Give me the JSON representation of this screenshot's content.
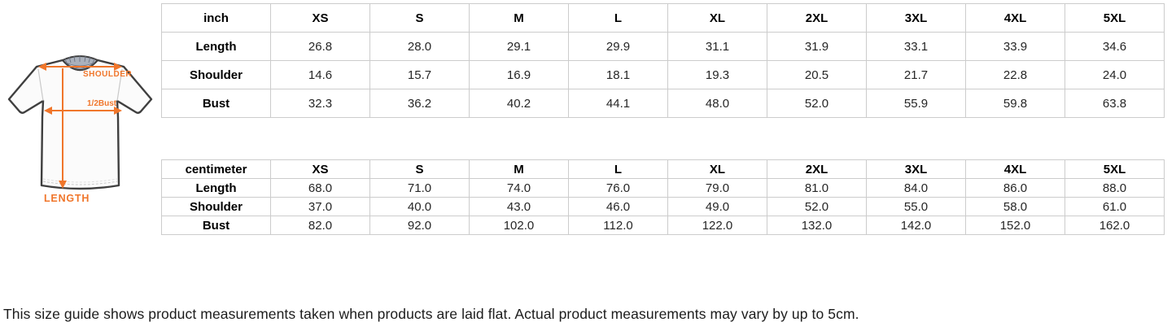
{
  "diagram": {
    "labels": {
      "shoulder": "SHOULDER",
      "bust": "1/2Bust",
      "length": "LENGTH"
    },
    "accent_color": "#F0762B",
    "collar_color": "#9aa3af",
    "outline_color": "#3f3f3f"
  },
  "tables": [
    {
      "unit_header": "inch",
      "sizes": [
        "XS",
        "S",
        "M",
        "L",
        "XL",
        "2XL",
        "3XL",
        "4XL",
        "5XL"
      ],
      "rows": [
        {
          "label": "Length",
          "values": [
            "26.8",
            "28.0",
            "29.1",
            "29.9",
            "31.1",
            "31.9",
            "33.1",
            "33.9",
            "34.6"
          ]
        },
        {
          "label": "Shoulder",
          "values": [
            "14.6",
            "15.7",
            "16.9",
            "18.1",
            "19.3",
            "20.5",
            "21.7",
            "22.8",
            "24.0"
          ]
        },
        {
          "label": "Bust",
          "values": [
            "32.3",
            "36.2",
            "40.2",
            "44.1",
            "48.0",
            "52.0",
            "55.9",
            "59.8",
            "63.8"
          ]
        }
      ]
    },
    {
      "unit_header": "centimeter",
      "sizes": [
        "XS",
        "S",
        "M",
        "L",
        "XL",
        "2XL",
        "3XL",
        "4XL",
        "5XL"
      ],
      "rows": [
        {
          "label": "Length",
          "values": [
            "68.0",
            "71.0",
            "74.0",
            "76.0",
            "79.0",
            "81.0",
            "84.0",
            "86.0",
            "88.0"
          ]
        },
        {
          "label": "Shoulder",
          "values": [
            "37.0",
            "40.0",
            "43.0",
            "46.0",
            "49.0",
            "52.0",
            "55.0",
            "58.0",
            "61.0"
          ]
        },
        {
          "label": "Bust",
          "values": [
            "82.0",
            "92.0",
            "102.0",
            "112.0",
            "122.0",
            "132.0",
            "142.0",
            "152.0",
            "162.0"
          ]
        }
      ]
    }
  ],
  "note": "This size guide shows product measurements taken when products are laid flat. Actual product measurements may vary by up to 5cm."
}
